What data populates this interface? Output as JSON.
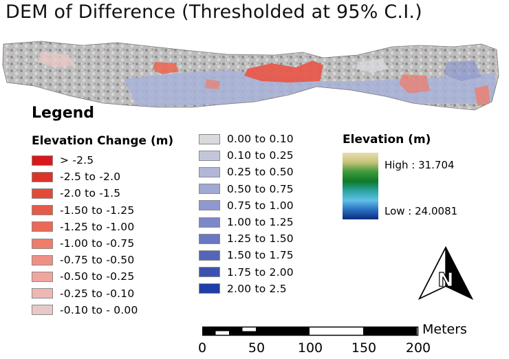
{
  "title": "DEM of Difference (Thresholded at 95% C.I.)",
  "legend": {
    "heading": "Legend",
    "elevation_change": {
      "title": "Elevation Change (m)",
      "negative": [
        {
          "label": "> -2.5",
          "color": "#d7191c"
        },
        {
          "label": "-2.5 to -2.0",
          "color": "#dd3327"
        },
        {
          "label": "-2.0 to -1.5",
          "color": "#e24a38"
        },
        {
          "label": "-1.50 to -1.25",
          "color": "#e65a48"
        },
        {
          "label": "-1.25 to -1.00",
          "color": "#ea6a57"
        },
        {
          "label": "-1.00 to -0.75",
          "color": "#ee7d6c"
        },
        {
          "label": "-0.75 to -0.50",
          "color": "#f09084"
        },
        {
          "label": "-0.50 to -0.25",
          "color": "#f0a59d"
        },
        {
          "label": "-0.25 to -0.10",
          "color": "#eeb7b3"
        },
        {
          "label": "-0.10 to - 0.00",
          "color": "#e8c9c8"
        }
      ],
      "positive": [
        {
          "label": "0.00 to  0.10",
          "color": "#d9d9de"
        },
        {
          "label": "0.10 to 0.25",
          "color": "#c3c6db"
        },
        {
          "label": "0.25 to 0.50",
          "color": "#b2b7d8"
        },
        {
          "label": "0.50 to 0.75",
          "color": "#a1a8d4"
        },
        {
          "label": "0.75 to 1.00",
          "color": "#8f98cf"
        },
        {
          "label": "1.00 to 1.25",
          "color": "#7d88c8"
        },
        {
          "label": "1.25 to 1.50",
          "color": "#6a77c1"
        },
        {
          "label": "1.50 to 1.75",
          "color": "#5565b9"
        },
        {
          "label": "1.75 to  2.00",
          "color": "#3d52b0"
        },
        {
          "label": "2.00 to 2.5",
          "color": "#1f3ea6"
        }
      ]
    },
    "elevation": {
      "title": "Elevation (m)",
      "high_label": "High : 31.704",
      "low_label": "Low : 24.0081",
      "high_value": 31.704,
      "low_value": 24.0081,
      "ramp_colors": [
        "#e8dcb0",
        "#c8c27a",
        "#3f9a3a",
        "#0e7a2a",
        "#2aa3a0",
        "#5fc0e8",
        "#2a6fc0",
        "#0b2d7a"
      ]
    }
  },
  "scale_bar": {
    "unit": "Meters",
    "ticks": [
      "0",
      "50",
      "100",
      "150",
      "200"
    ]
  },
  "north_arrow": {
    "icon": "north-arrow-icon",
    "letter": "N"
  }
}
